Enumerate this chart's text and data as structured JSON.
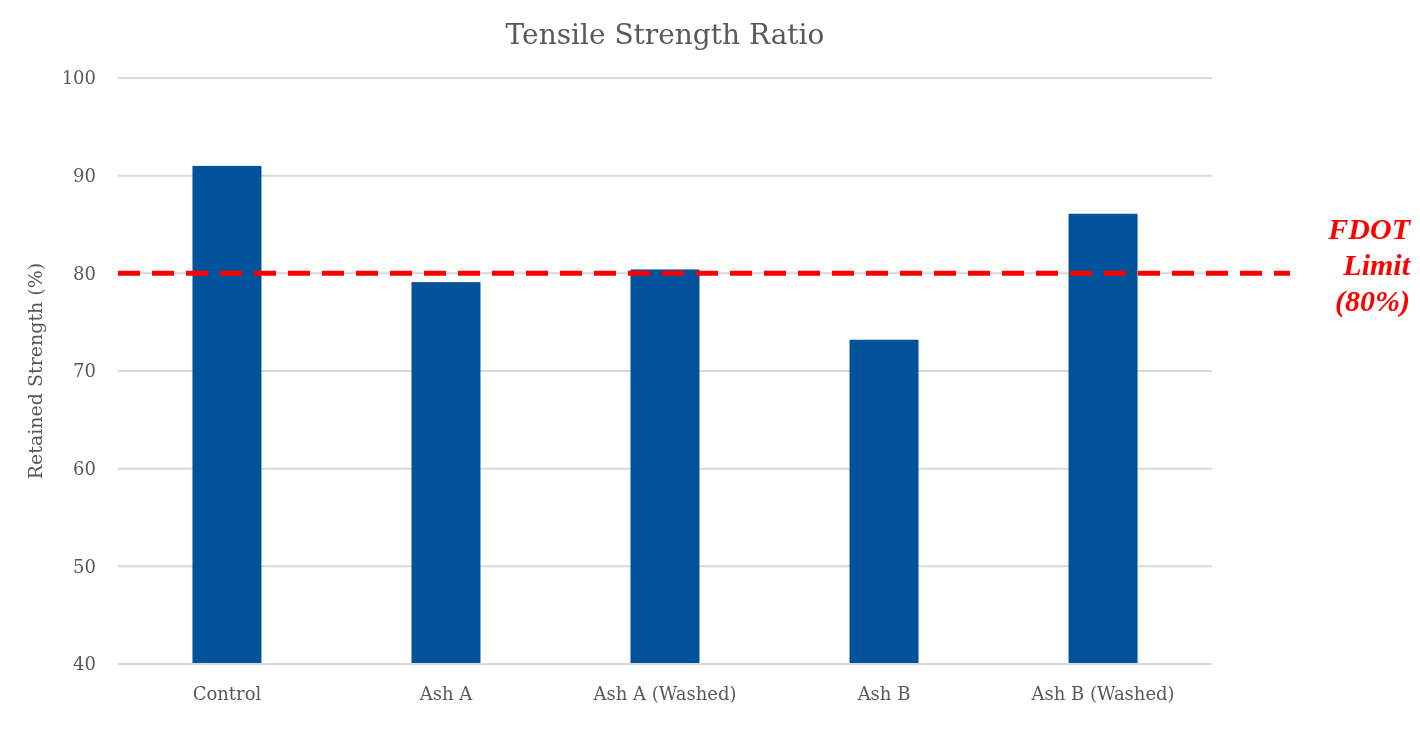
{
  "chart_data": {
    "type": "bar",
    "title": "Tensile Strength Ratio",
    "ylabel": "Retained Strength (%)",
    "categories": [
      "Control",
      "Ash A",
      "Ash A (Washed)",
      "Ash B",
      "Ash B (Washed)"
    ],
    "values": [
      91,
      79.1,
      80.4,
      73.2,
      86.1
    ],
    "color": "#00539b",
    "ylim": [
      40,
      100
    ],
    "yticks": [
      40,
      50,
      60,
      70,
      80,
      90,
      100
    ],
    "grid": "y",
    "ref_lines": [
      {
        "axis": "y",
        "value": 80,
        "label": "FDOT Limit (80%)",
        "color": "#ff0000",
        "line_style": "dashed"
      }
    ]
  }
}
